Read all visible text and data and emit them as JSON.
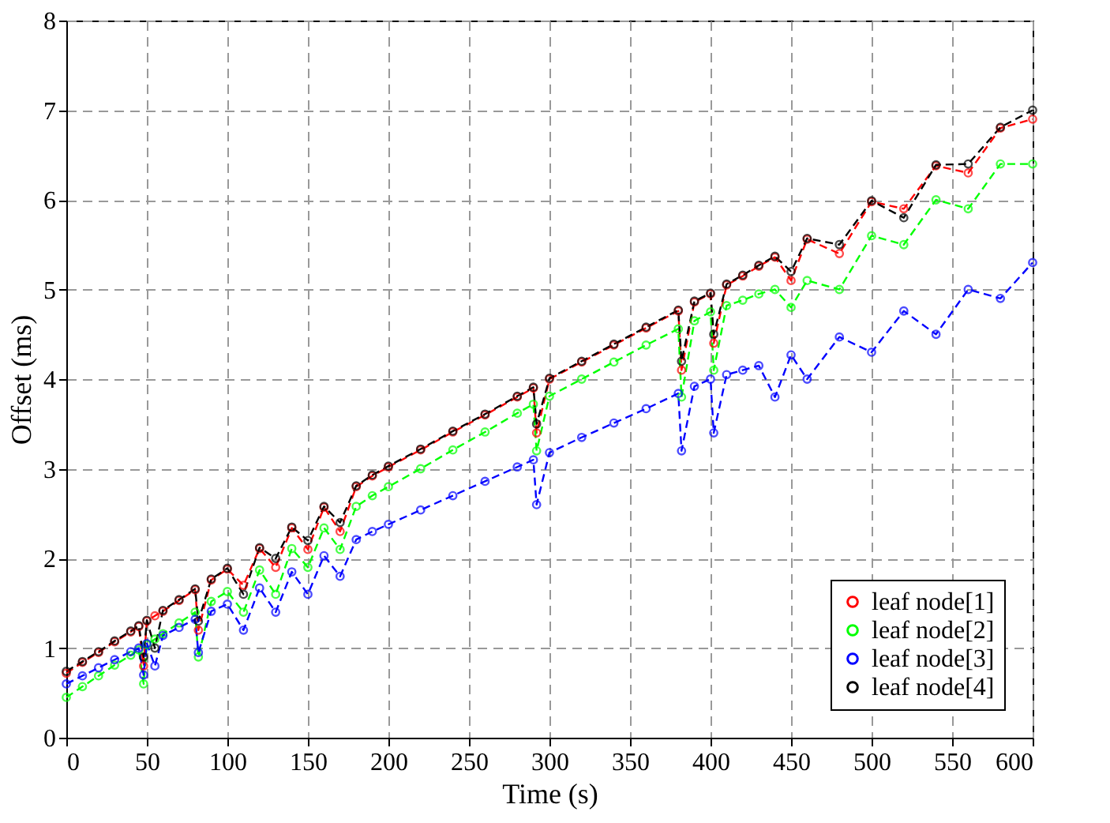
{
  "chart_data": {
    "type": "line",
    "xlabel": "Time (s)",
    "ylabel": "Offset (ms)",
    "x": [
      0,
      10,
      20,
      30,
      40,
      45,
      48,
      50,
      55,
      60,
      70,
      80,
      82,
      90,
      100,
      110,
      120,
      130,
      140,
      150,
      160,
      170,
      180,
      190,
      200,
      220,
      240,
      260,
      280,
      290,
      292,
      300,
      320,
      340,
      360,
      380,
      382,
      390,
      400,
      402,
      410,
      420,
      430,
      440,
      450,
      460,
      480,
      500,
      520,
      540,
      560,
      580,
      600
    ],
    "series": [
      {
        "name": "leaf node[1]",
        "color": "#ff0000",
        "values": [
          0.72,
          0.84,
          0.95,
          1.07,
          1.18,
          1.24,
          0.8,
          1.3,
          1.36,
          1.41,
          1.53,
          1.65,
          1.2,
          1.76,
          1.88,
          1.7,
          2.11,
          1.9,
          2.34,
          2.1,
          2.57,
          2.3,
          2.8,
          2.92,
          3.02,
          3.21,
          3.41,
          3.6,
          3.8,
          3.9,
          3.4,
          4.0,
          4.19,
          4.38,
          4.57,
          4.76,
          4.1,
          4.86,
          4.95,
          4.4,
          5.05,
          5.15,
          5.26,
          5.36,
          5.1,
          5.56,
          5.4,
          5.98,
          5.9,
          6.38,
          6.3,
          6.8,
          6.9
        ]
      },
      {
        "name": "leaf node[2]",
        "color": "#00ff00",
        "values": [
          0.45,
          0.57,
          0.69,
          0.81,
          0.92,
          0.98,
          0.6,
          1.04,
          1.1,
          1.16,
          1.28,
          1.4,
          0.9,
          1.52,
          1.63,
          1.4,
          1.87,
          1.6,
          2.11,
          1.9,
          2.34,
          2.1,
          2.58,
          2.7,
          2.8,
          3.0,
          3.21,
          3.41,
          3.62,
          3.72,
          3.2,
          3.81,
          4.0,
          4.19,
          4.38,
          4.56,
          3.8,
          4.65,
          4.75,
          4.1,
          4.82,
          4.88,
          4.95,
          5.0,
          4.8,
          5.1,
          5.0,
          5.6,
          5.5,
          6.0,
          5.9,
          6.4,
          6.4
        ]
      },
      {
        "name": "leaf node[3]",
        "color": "#0000ff",
        "values": [
          0.6,
          0.69,
          0.78,
          0.87,
          0.96,
          1.0,
          0.7,
          1.05,
          0.8,
          1.14,
          1.23,
          1.32,
          0.95,
          1.41,
          1.49,
          1.2,
          1.67,
          1.4,
          1.85,
          1.6,
          2.03,
          1.8,
          2.21,
          2.3,
          2.38,
          2.54,
          2.7,
          2.86,
          3.02,
          3.1,
          2.6,
          3.18,
          3.35,
          3.51,
          3.67,
          3.84,
          3.2,
          3.92,
          4.0,
          3.4,
          4.05,
          4.1,
          4.15,
          3.8,
          4.27,
          4.0,
          4.47,
          4.3,
          4.76,
          4.5,
          5.0,
          4.9,
          5.3
        ]
      },
      {
        "name": "leaf node[4]",
        "color": "#000000",
        "values": [
          0.74,
          0.85,
          0.96,
          1.08,
          1.19,
          1.25,
          0.9,
          1.31,
          1.0,
          1.42,
          1.54,
          1.66,
          1.3,
          1.77,
          1.89,
          1.6,
          2.12,
          2.0,
          2.35,
          2.2,
          2.58,
          2.4,
          2.81,
          2.93,
          3.03,
          3.22,
          3.42,
          3.61,
          3.81,
          3.91,
          3.5,
          4.01,
          4.2,
          4.39,
          4.58,
          4.77,
          4.2,
          4.87,
          4.96,
          4.5,
          5.06,
          5.16,
          5.27,
          5.37,
          5.2,
          5.57,
          5.5,
          5.99,
          5.8,
          6.39,
          6.4,
          6.81,
          7.0
        ]
      }
    ],
    "xlim": [
      0,
      600
    ],
    "xticks": [
      0,
      50,
      100,
      150,
      200,
      250,
      300,
      350,
      400,
      450,
      500,
      550,
      600
    ],
    "ylim": [
      0,
      8
    ],
    "yticks": [
      0,
      1,
      2,
      3,
      4,
      5,
      6,
      7,
      8
    ],
    "grid": true,
    "legend": "bottom right",
    "marker": "circle",
    "line_style": "dashed"
  }
}
